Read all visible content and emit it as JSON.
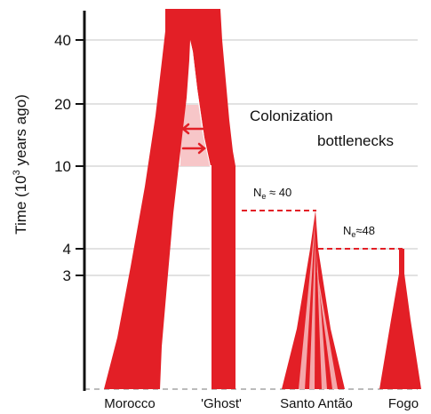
{
  "colors": {
    "population": "#e31f26",
    "population_light": "#f4a7aa",
    "migration_band": "#f7c6c8",
    "gridline": "#d9d9d9",
    "axis": "#111111",
    "bottleneck_dash": "#e31f26",
    "baseline_dash": "#bbbbbb"
  },
  "axis": {
    "ylabel_prefix": "Time (10",
    "ylabel_exp": "3",
    "ylabel_suffix": " years ago)",
    "ticks": [
      "40",
      "20",
      "10",
      "4",
      "3"
    ]
  },
  "populations": [
    "Morocco",
    "'Ghost'",
    "Santo Antão",
    "Fogo"
  ],
  "annotation": {
    "line1": "Colonization",
    "line2": "bottlenecks"
  },
  "bottlenecks": [
    {
      "label_main": "N",
      "label_sub": "e",
      "label_value": " ≈ 40"
    },
    {
      "label_main": "N",
      "label_sub": "e",
      "label_value": "≈48"
    }
  ],
  "icons": {
    "migration_arrow_left": "arrow-left-icon",
    "migration_arrow_right": "arrow-right-icon"
  }
}
